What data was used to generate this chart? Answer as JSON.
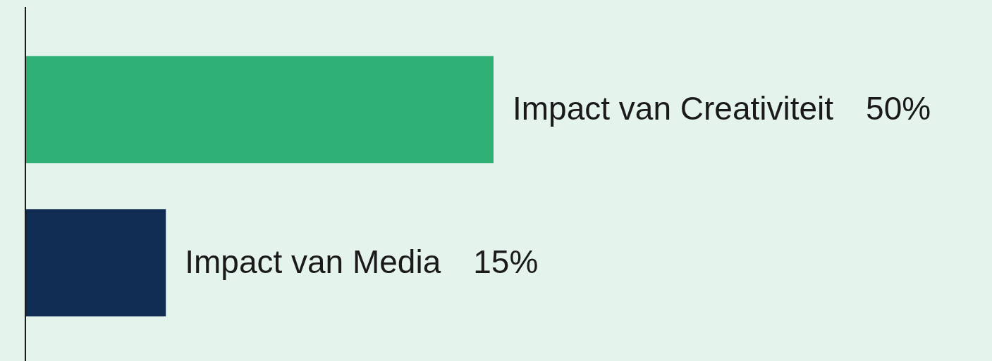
{
  "chart_data": {
    "type": "bar",
    "orientation": "horizontal",
    "categories": [
      null,
      null
    ],
    "values": [
      50,
      15
    ],
    "colors": [
      "#2eaf74",
      "#112c52"
    ],
    "value_labels": [
      "Impact van Creativiteit  50%",
      "Impact van Media  15%"
    ],
    "tick_labels": false,
    "legend": false,
    "grid": false
  }
}
